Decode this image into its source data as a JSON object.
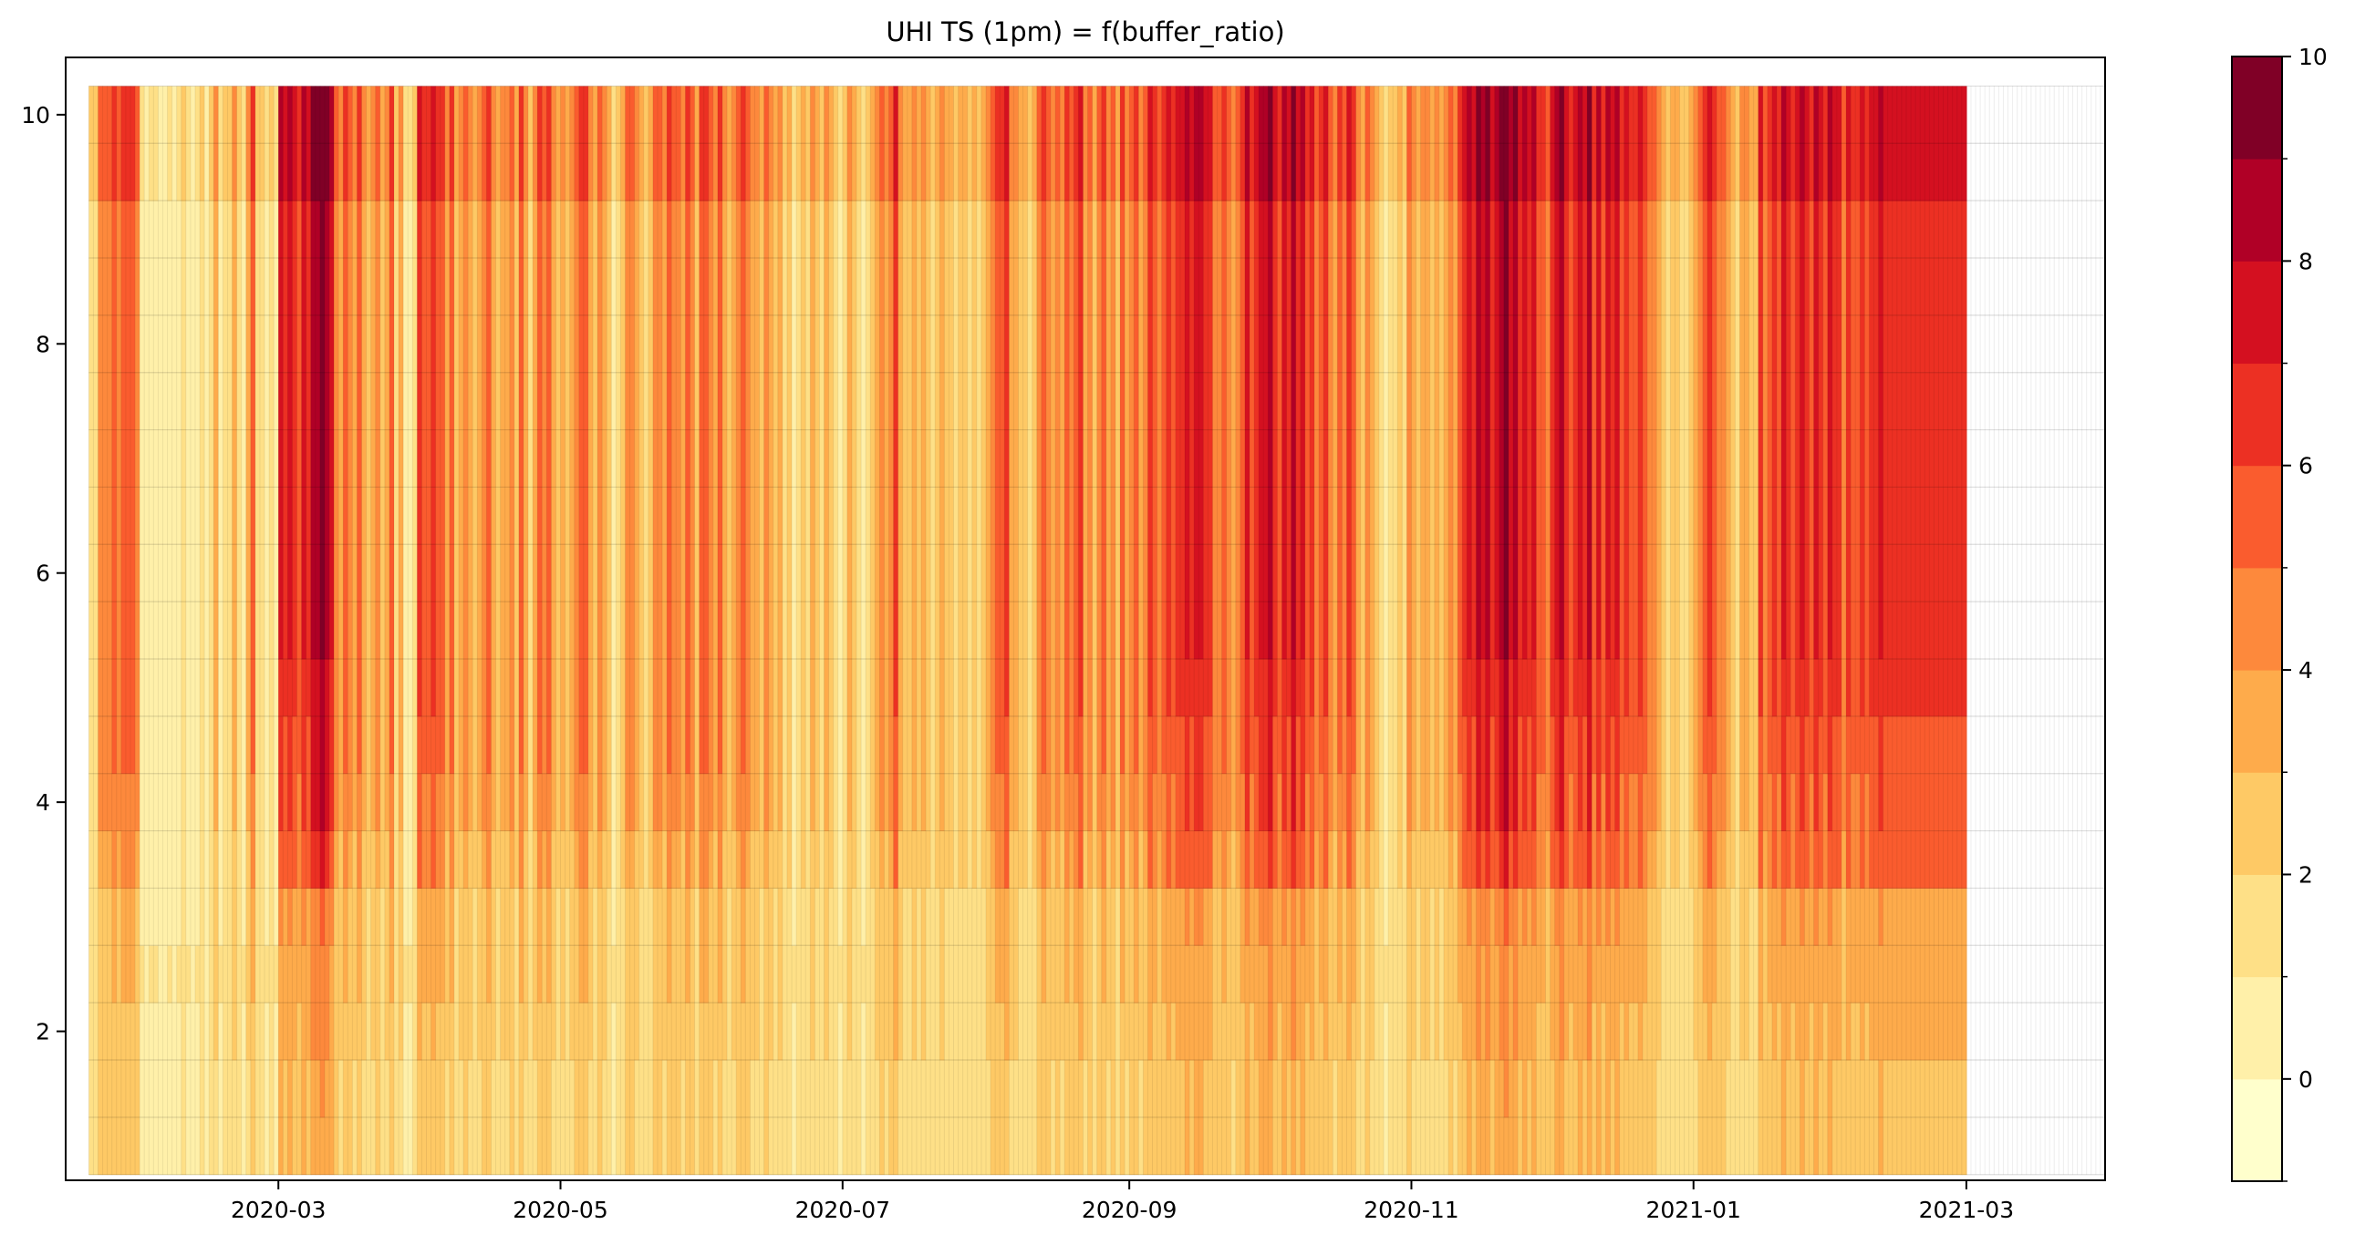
{
  "chart_data": {
    "type": "heatmap",
    "title": "UHI TS (1pm) = f(buffer_ratio)",
    "xlabel": "",
    "ylabel": "",
    "x_axis": {
      "type": "date",
      "range": [
        "2020-01-15",
        "2021-03-31"
      ],
      "data_start": "2020-01-20",
      "data_end": "2021-02-28",
      "grid_end": "2021-03-31",
      "tick_labels": [
        "2020-03",
        "2020-05",
        "2020-07",
        "2020-09",
        "2020-11",
        "2021-01",
        "2021-03"
      ],
      "tick_dates": [
        "2020-03-01",
        "2020-05-01",
        "2020-07-01",
        "2020-09-01",
        "2020-11-01",
        "2021-01-01",
        "2021-03-01"
      ]
    },
    "y_axis": {
      "range": [
        0.7,
        10.5
      ],
      "tick_labels": [
        "2",
        "4",
        "6",
        "8",
        "10"
      ],
      "tick_values": [
        2,
        4,
        6,
        8,
        10
      ],
      "row_edges": [
        0.75,
        1.25,
        1.75,
        2.25,
        2.75,
        3.25,
        3.75,
        4.25,
        4.75,
        5.25,
        5.75,
        6.25,
        6.75,
        7.25,
        7.75,
        8.25,
        8.75,
        9.25,
        9.75,
        10.25
      ],
      "row_value_factors": [
        0.3,
        0.34,
        0.38,
        0.42,
        0.55,
        0.72,
        0.8,
        0.84,
        0.87,
        0.9,
        0.92,
        0.94,
        0.95,
        0.96,
        0.97,
        0.98,
        0.99,
        1.0,
        1.0
      ]
    },
    "daily_top_values": [
      [
        2,
        2,
        5,
        5,
        5,
        6,
        5,
        6,
        6,
        6,
        5,
        1,
        0,
        1,
        1,
        0,
        0,
        1,
        0,
        1,
        2,
        1,
        0,
        1,
        2,
        0,
        2,
        4,
        1,
        2,
        2,
        4,
        2,
        1,
        4,
        6,
        2,
        2,
        1,
        2,
        1
      ],
      [
        8,
        7,
        8,
        7,
        6,
        8,
        7,
        9,
        9,
        10,
        9,
        8,
        5,
        4,
        6,
        5,
        4,
        6,
        4,
        3,
        4,
        5,
        3,
        4,
        6,
        2,
        4,
        1,
        1,
        2,
        7,
        6,
        6,
        7,
        6,
        6,
        4,
        6,
        3,
        4,
        5,
        4,
        3,
        4,
        5,
        6,
        4,
        3,
        4,
        4
      ],
      [
        5,
        3,
        6,
        4,
        2,
        4,
        6,
        5,
        6,
        4,
        3,
        4,
        3,
        4,
        5,
        6,
        6,
        4,
        3,
        5,
        4,
        3,
        1,
        2,
        3,
        5,
        5,
        4,
        3,
        2,
        3,
        5,
        5,
        4,
        6,
        5,
        5,
        4,
        6,
        5,
        3,
        6,
        6,
        5,
        4,
        6,
        4,
        3,
        4,
        5,
        6,
        5,
        4,
        4,
        3,
        5
      ],
      [
        4,
        3,
        4,
        2,
        3,
        1,
        2,
        3,
        2,
        4,
        3,
        2,
        4,
        3,
        2,
        1,
        2,
        4,
        3,
        2,
        1,
        2,
        3,
        4,
        5,
        4,
        5,
        7,
        4,
        3,
        3,
        4,
        3,
        4,
        3,
        2,
        3,
        4,
        3,
        3,
        2,
        3,
        3,
        2,
        3,
        2,
        3,
        4,
        5,
        6,
        6,
        7,
        4,
        4,
        3,
        3,
        2,
        3,
        5
      ],
      [
        6,
        5,
        4,
        5,
        4,
        6,
        5,
        6,
        7,
        4,
        5,
        3,
        5,
        6,
        4,
        5,
        3,
        6,
        4,
        5,
        6,
        4,
        5,
        7,
        6,
        5,
        6,
        7,
        6,
        7,
        7,
        8,
        7,
        8,
        8,
        7,
        7,
        5,
        5,
        6,
        5,
        4,
        5,
        6,
        8,
        6,
        7,
        8,
        8,
        9,
        7,
        6,
        8,
        7,
        9,
        7,
        8,
        6,
        7,
        5,
        6,
        7
      ],
      [
        5,
        4,
        6,
        5,
        7,
        6,
        4,
        3,
        5,
        4,
        3,
        2,
        1,
        2,
        2,
        3,
        2,
        5,
        4,
        3,
        4,
        4,
        3,
        4,
        3,
        4,
        5,
        4,
        6,
        7,
        8,
        7,
        9,
        8,
        9,
        7,
        8,
        9,
        10,
        8,
        9,
        7,
        8,
        7,
        8,
        6,
        6,
        5,
        7,
        8,
        9,
        7,
        6,
        7,
        8,
        7,
        9,
        6,
        8,
        6,
        8,
        7,
        8,
        6
      ],
      [
        7,
        6,
        6,
        7,
        6,
        5,
        5,
        4,
        3,
        2,
        3,
        3,
        2,
        2,
        3,
        4,
        5,
        6,
        7,
        6,
        5,
        5,
        4,
        3,
        2,
        4,
        4,
        3,
        3,
        7,
        5,
        6,
        7,
        6,
        8,
        7,
        6,
        7,
        8,
        7,
        6,
        8,
        7,
        6,
        8,
        7,
        7,
        5,
        7,
        6,
        6,
        7,
        6,
        7,
        7,
        8,
        7
      ]
    ],
    "colorbar": {
      "range": [
        -1,
        10
      ],
      "tick_labels": [
        "0",
        "2",
        "4",
        "6",
        "8",
        "10"
      ],
      "tick_values": [
        0,
        2,
        4,
        6,
        8,
        10
      ],
      "bin_edges": [
        -1,
        0,
        1,
        2,
        3,
        4,
        5,
        6,
        7,
        8,
        9,
        10
      ],
      "colors": [
        "#ffffcc",
        "#fff0a9",
        "#fee087",
        "#fec965",
        "#feab4b",
        "#fd893c",
        "#fa5c2e",
        "#ec3023",
        "#d41020",
        "#b00026",
        "#800026"
      ]
    },
    "grid": true,
    "legend": "colorbar-right"
  }
}
